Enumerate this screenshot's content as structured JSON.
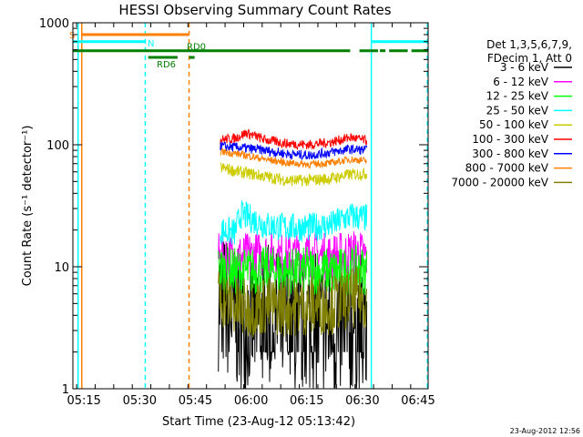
{
  "chart_data": {
    "type": "line",
    "title": "HESSI Observing Summary Count Rates",
    "xlabel": "Start Time (23-Aug-12 05:13:42)",
    "ylabel": "Count Rate (s⁻¹ detector⁻¹)",
    "yscale": "log",
    "ylim": [
      1,
      1000
    ],
    "xlim_min": [
      -1.7,
      94
    ],
    "x_unit": "minutes after 05:13:42",
    "yticks": [
      {
        "v": 1,
        "label": "1"
      },
      {
        "v": 10,
        "label": "10"
      },
      {
        "v": 100,
        "label": "100"
      },
      {
        "v": 1000,
        "label": "1000"
      }
    ],
    "xticks": [
      {
        "v": 1.3,
        "label": "05:15"
      },
      {
        "v": 16.3,
        "label": "05:30"
      },
      {
        "v": 31.3,
        "label": "05:45"
      },
      {
        "v": 46.3,
        "label": "06:00"
      },
      {
        "v": 61.3,
        "label": "06:15"
      },
      {
        "v": 76.3,
        "label": "06:30"
      },
      {
        "v": 91.3,
        "label": "06:45"
      }
    ],
    "legend_header": [
      "Det 1,3,5,6,7,9,",
      "FDecim 1, Att 0"
    ],
    "grid": false,
    "legend_position": "right",
    "series": [
      {
        "name": "3 - 6 keV",
        "color": "#000000",
        "points": [
          [
            37.5,
            5.5
          ],
          [
            43,
            3.5
          ],
          [
            50,
            4.0
          ],
          [
            56,
            3.2
          ],
          [
            62,
            3.4
          ],
          [
            68,
            3.0
          ],
          [
            75,
            3.5
          ],
          [
            77.5,
            3.0
          ]
        ],
        "noise": 0.6,
        "gap": 2.0
      },
      {
        "name": "6 - 12 keV",
        "color": "#ff00ff",
        "points": [
          [
            37.5,
            12
          ],
          [
            43,
            12
          ],
          [
            50,
            12.5
          ],
          [
            56,
            12
          ],
          [
            62,
            12.5
          ],
          [
            68,
            12
          ],
          [
            75,
            13
          ],
          [
            77.5,
            12
          ]
        ],
        "noise": 0.2
      },
      {
        "name": "12 - 25 keV",
        "color": "#00ff00",
        "points": [
          [
            37.5,
            9.5
          ],
          [
            43,
            9.0
          ],
          [
            50,
            9.3
          ],
          [
            56,
            9.0
          ],
          [
            62,
            9.3
          ],
          [
            68,
            9.0
          ],
          [
            75,
            9.5
          ],
          [
            77.5,
            9.2
          ]
        ],
        "noise": 0.2
      },
      {
        "name": "25 - 50 keV",
        "color": "#00ffff",
        "points": [
          [
            38,
            20
          ],
          [
            42,
            19
          ],
          [
            43.5,
            27
          ],
          [
            50,
            22
          ],
          [
            56,
            21
          ],
          [
            62,
            21
          ],
          [
            68,
            22
          ],
          [
            73,
            26
          ],
          [
            77.5,
            25
          ]
        ],
        "noise": 0.12
      },
      {
        "name": "50 - 100 keV",
        "color": "#cccc00",
        "points": [
          [
            38,
            65
          ],
          [
            43,
            60
          ],
          [
            50,
            55
          ],
          [
            56,
            51
          ],
          [
            62,
            51
          ],
          [
            68,
            53
          ],
          [
            73,
            57
          ],
          [
            77.5,
            58
          ]
        ],
        "noise": 0.05
      },
      {
        "name": "100 - 300 keV",
        "color": "#ff0000",
        "points": [
          [
            38,
            110
          ],
          [
            42,
            113
          ],
          [
            45,
            125
          ],
          [
            50,
            110
          ],
          [
            56,
            102
          ],
          [
            62,
            100
          ],
          [
            68,
            105
          ],
          [
            73,
            115
          ],
          [
            77.5,
            108
          ]
        ],
        "noise": 0.04
      },
      {
        "name": "300 - 800 keV",
        "color": "#0000ff",
        "points": [
          [
            38,
            97
          ],
          [
            43,
            95
          ],
          [
            50,
            90
          ],
          [
            56,
            84
          ],
          [
            62,
            82
          ],
          [
            68,
            87
          ],
          [
            73,
            92
          ],
          [
            77.5,
            90
          ]
        ],
        "noise": 0.04
      },
      {
        "name": "800 - 7000 keV",
        "color": "#ff7f00",
        "points": [
          [
            38,
            88
          ],
          [
            43,
            84
          ],
          [
            50,
            76
          ],
          [
            56,
            71
          ],
          [
            62,
            69
          ],
          [
            68,
            71
          ],
          [
            73,
            76
          ],
          [
            77.5,
            74
          ]
        ],
        "noise": 0.03
      },
      {
        "name": "7000 - 20000 keV",
        "color": "#808000",
        "points": [
          [
            37.5,
            5.8
          ],
          [
            43,
            4.5
          ],
          [
            50,
            4.8
          ],
          [
            56,
            4.7
          ],
          [
            62,
            4.8
          ],
          [
            68,
            4.9
          ],
          [
            75,
            5.7
          ],
          [
            77.5,
            5.2
          ]
        ],
        "noise": 0.25
      }
    ],
    "vlines": [
      {
        "x": -0.3,
        "color": "#00ffff",
        "dash": false
      },
      {
        "x": 0.7,
        "color": "#ff7f00",
        "dash": false
      },
      {
        "x": 17.8,
        "color": "#00ffff",
        "dash": true
      },
      {
        "x": 29.6,
        "color": "#ff7f00",
        "dash": true
      },
      {
        "x": 78.7,
        "color": "#00ffff",
        "dash": false
      },
      {
        "x": 93.8,
        "color": "#00ffff",
        "dash": true
      }
    ],
    "flags": [
      {
        "label": "S",
        "color": "#ff7f00",
        "y": 800,
        "segments": [
          [
            0.7,
            29.6
          ]
        ]
      },
      {
        "label": "N",
        "color": "#00ffff",
        "y": 700,
        "segments": [
          [
            -1.7,
            17.8
          ],
          [
            78.7,
            94
          ]
        ]
      },
      {
        "label": "RD0",
        "color": "#008000",
        "y": 590,
        "segments": [
          [
            -1.7,
            73
          ],
          [
            75.5,
            80.5
          ],
          [
            81,
            82.5
          ],
          [
            83.5,
            88.5
          ],
          [
            89.5,
            94
          ]
        ]
      },
      {
        "label": "RD6",
        "color": "#008000",
        "y": 520,
        "segments": [
          [
            18.6,
            26.5
          ],
          [
            29.6,
            31.1
          ]
        ]
      }
    ],
    "footer_stamp": "23-Aug-2012 12:56"
  }
}
